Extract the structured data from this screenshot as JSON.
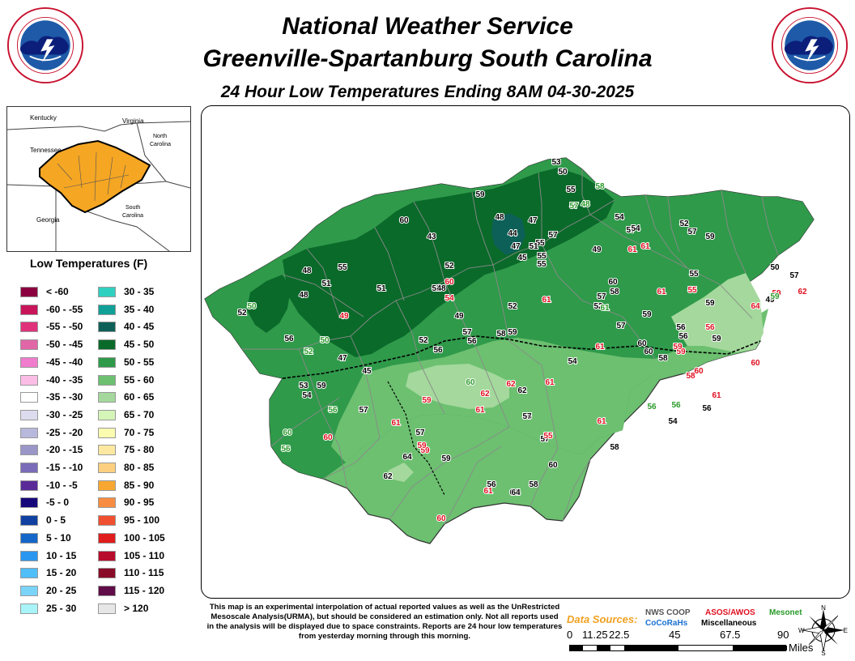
{
  "header": {
    "title_line1": "National Weather Service",
    "title_line2": "Greenville-Spartanburg South Carolina",
    "subtitle": "24 Hour Low Temperatures Ending 8AM 04-30-2025"
  },
  "logo": {
    "text_top": "NATIONAL WEATHER SERVICE",
    "text_bottom": "U.S. DEPARTMENT OF COMMERCE"
  },
  "inset": {
    "labels": [
      "Kentucky",
      "Virginia",
      "North Carolina",
      "Tennessee",
      "South Carolina",
      "Georgia"
    ],
    "colors": {
      "cwa_fill": "#f5a623",
      "state_line": "#333333"
    }
  },
  "legend": {
    "title": "Low Temperatures (F)",
    "left": [
      {
        "label": "< -60",
        "color": "#8b0040"
      },
      {
        "label": "-60 - -55",
        "color": "#c8155a"
      },
      {
        "label": "-55 - -50",
        "color": "#e0327a"
      },
      {
        "label": "-50 - -45",
        "color": "#e066a8"
      },
      {
        "label": "-45 - -40",
        "color": "#f07ccd"
      },
      {
        "label": "-40 - -35",
        "color": "#fbbde6"
      },
      {
        "label": "-35 - -30",
        "color": "#ffffff"
      },
      {
        "label": "-30 - -25",
        "color": "#dcdcee"
      },
      {
        "label": "-25 - -20",
        "color": "#b8b8dc"
      },
      {
        "label": "-20 - -15",
        "color": "#9a96c8"
      },
      {
        "label": "-15 - -10",
        "color": "#7a6cb8"
      },
      {
        "label": "-10 - -5",
        "color": "#5a2a98"
      },
      {
        "label": "-5 - 0",
        "color": "#16087a"
      },
      {
        "label": "0 - 5",
        "color": "#1040a0"
      },
      {
        "label": "5 - 10",
        "color": "#1466c8"
      },
      {
        "label": "10 - 15",
        "color": "#2a96f0"
      },
      {
        "label": "15 - 20",
        "color": "#50bef8"
      },
      {
        "label": "20 - 25",
        "color": "#7ad4f8"
      },
      {
        "label": "25 - 30",
        "color": "#a8f4f8"
      }
    ],
    "right": [
      {
        "label": "30 - 35",
        "color": "#30d0c0"
      },
      {
        "label": "35 - 40",
        "color": "#10a098"
      },
      {
        "label": "40 - 45",
        "color": "#0c6058"
      },
      {
        "label": "45 - 50",
        "color": "#0a6a2a"
      },
      {
        "label": "50 - 55",
        "color": "#2f9a4a"
      },
      {
        "label": "55 - 60",
        "color": "#6cc070"
      },
      {
        "label": "60 - 65",
        "color": "#a4d89c"
      },
      {
        "label": "65 - 70",
        "color": "#d4f4b8"
      },
      {
        "label": "70 - 75",
        "color": "#fcfcb0"
      },
      {
        "label": "75 - 80",
        "color": "#fce8a0"
      },
      {
        "label": "80 - 85",
        "color": "#fcd080"
      },
      {
        "label": "85 - 90",
        "color": "#f8a830"
      },
      {
        "label": "90 - 95",
        "color": "#f88c40"
      },
      {
        "label": "95 - 100",
        "color": "#f05030"
      },
      {
        "label": "100 - 105",
        "color": "#e01c1c"
      },
      {
        "label": "105 - 110",
        "color": "#b80c2c"
      },
      {
        "label": "110 - 115",
        "color": "#880c28"
      },
      {
        "label": "115 - 120",
        "color": "#600c48"
      },
      {
        "label": "> 120",
        "color": "#e6e6e6"
      }
    ]
  },
  "map": {
    "colors": {
      "t45_50": "#0a6a2a",
      "t50_55": "#2f9a4a",
      "t55_60": "#6cc070",
      "t60_65": "#a4d89c",
      "t40_45": "#0c6058",
      "nws_coop": "#000000",
      "asos_awos": "#e01020",
      "mesonet": "#2a9a2a",
      "cocorahs": "#1a70d0"
    },
    "values": [
      "53",
      "50",
      "58",
      "55",
      "59",
      "57",
      "48",
      "48",
      "47",
      "44",
      "57",
      "55",
      "51",
      "54",
      "57",
      "47",
      "55",
      "49",
      "61",
      "43",
      "60",
      "52",
      "55",
      "45",
      "55",
      "48",
      "51",
      "48",
      "52",
      "54",
      "52",
      "59",
      "49",
      "52",
      "51",
      "50",
      "48",
      "54",
      "52",
      "57",
      "49",
      "61",
      "47",
      "52",
      "50",
      "56",
      "50",
      "52",
      "45",
      "56",
      "58",
      "56",
      "53",
      "59",
      "54",
      "56",
      "60",
      "62",
      "62",
      "61",
      "59",
      "62",
      "61",
      "57",
      "58",
      "60",
      "56",
      "61",
      "57",
      "59",
      "60",
      "64",
      "61",
      "62",
      "58",
      "55",
      "52",
      "58",
      "61",
      "49",
      "60",
      "56",
      "59",
      "56",
      "56",
      "59",
      "64",
      "59",
      "57",
      "59",
      "62",
      "60",
      "57",
      "59",
      "58",
      "61",
      "58",
      "56",
      "60",
      "54",
      "57",
      "61",
      "60",
      "64",
      "56",
      "59",
      "60",
      "64",
      "57",
      "55",
      "59",
      "59",
      "60",
      "59",
      "61",
      "58",
      "60",
      "61",
      "57",
      "56",
      "57",
      "54",
      "56",
      "60",
      "55",
      "61",
      "59"
    ]
  },
  "footer": {
    "disclaimer": "This map is an experimental interpolation of actual reported values as well as the UnRestricted Mesoscale Analysis(URMA), but should be considered an estimation only. Not all reports used in the analysis will be displayed due to space constraints. Reports are 24 hour low temperatures from yesterday morning through this morning.",
    "data_sources_title": "Data Sources:",
    "sources": {
      "nws_coop": "NWS COOP",
      "asos_awos": "ASOS/AWOS",
      "mesonet": "Mesonet",
      "cocorahs": "CoCoRaHs",
      "misc": "Miscellaneous"
    },
    "scale": {
      "ticks": [
        "0",
        "11.25",
        "22.5",
        "45",
        "67.5",
        "90"
      ],
      "unit": "Miles"
    },
    "compass": {
      "n": "N",
      "s": "S",
      "e": "E",
      "w": "W"
    }
  }
}
